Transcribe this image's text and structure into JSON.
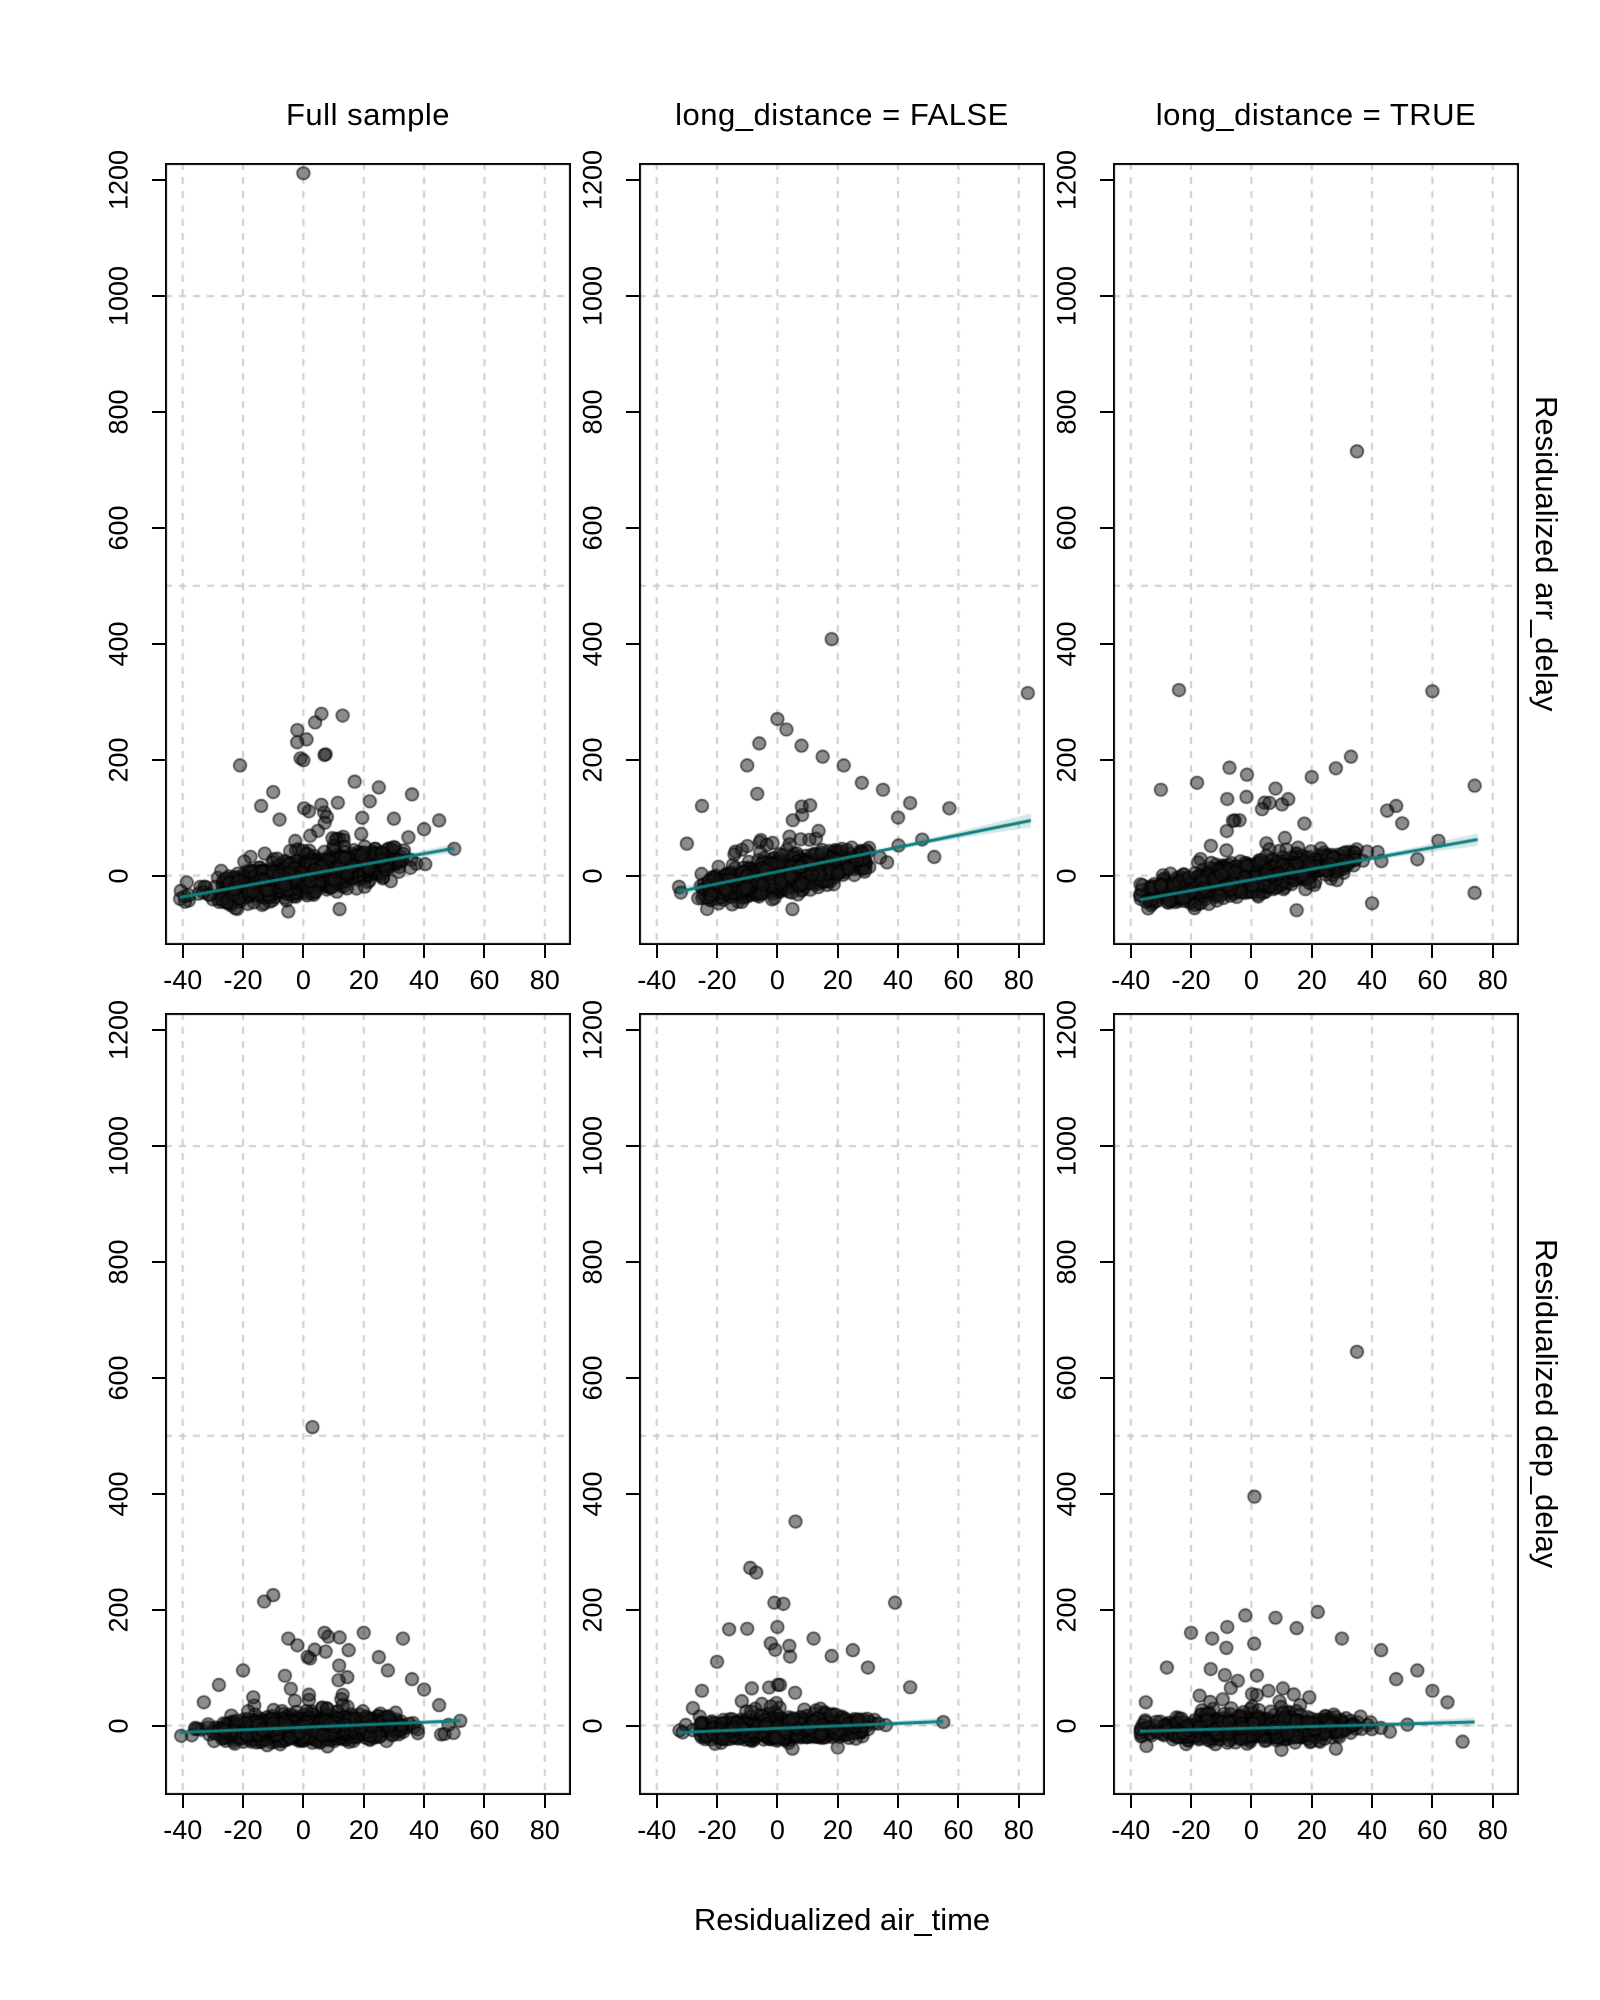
{
  "figure": {
    "background": "#ffffff",
    "description": "2x3 grid of residualized scatter plots with linear fits"
  },
  "chart_data": {
    "type": "scatter",
    "grid": {
      "rows": 2,
      "cols": 3
    },
    "col_titles": [
      "Full sample",
      "long_distance = FALSE",
      "long_distance = TRUE"
    ],
    "row_labels": [
      "Residualized arr_delay",
      "Residualized dep_delay"
    ],
    "xlabel": "Residualized air_time",
    "x_ticks": [
      -40,
      -20,
      0,
      20,
      40,
      60,
      80
    ],
    "y_ticks": [
      0,
      200,
      400,
      600,
      800,
      1000,
      1200
    ],
    "v_gridlines": [
      -40,
      -20,
      0,
      20,
      40,
      60,
      80
    ],
    "h_gridlines": [
      0,
      500,
      1000
    ],
    "xlim": [
      -45.7,
      88.6
    ],
    "ylim": [
      -120,
      1230
    ],
    "legend": "none",
    "style": {
      "line_color": "#0f7e7e",
      "ribbon_color": "rgba(15,126,126,0.18)",
      "point_fill": "rgba(25,25,25,0.5)",
      "point_stroke": "rgba(0,0,0,0.65)",
      "point_radius": 6.3,
      "grid_color": "#cccccc",
      "border_color": "#000000",
      "text_color": "#000000"
    },
    "panels": [
      {
        "id": "full-sample-arr-delay",
        "row": 0,
        "col": 0,
        "title": "Full sample",
        "yvar": "Residualized arr_delay",
        "fit_line": {
          "x": [
            -41,
            50
          ],
          "y": [
            -38,
            47
          ]
        },
        "ribbon": {
          "start": 5,
          "mid": 2.5,
          "end": 8
        },
        "seed": 101,
        "cluster": {
          "n": 1500,
          "x_mu": 2,
          "x_sd": 13,
          "x_range": [
            -41,
            50
          ],
          "slope": 0.9,
          "intercept": -2,
          "sigma": 13,
          "p_tail": 0.055,
          "tail_scale": 65,
          "fan_mu": 5,
          "fan_sd": 16,
          "y_cap": 280,
          "y_floor": -68
        },
        "outliers": [
          [
            0,
            1212
          ],
          [
            6,
            279
          ],
          [
            13,
            276
          ],
          [
            -2,
            251
          ],
          [
            -21,
            190
          ],
          [
            7,
            208
          ],
          [
            0,
            199
          ],
          [
            17,
            162
          ],
          [
            25,
            152
          ],
          [
            36,
            140
          ],
          [
            -10,
            144
          ],
          [
            -14,
            120
          ],
          [
            45,
            95
          ],
          [
            50,
            46
          ],
          [
            -38,
            -34
          ],
          [
            -5,
            -62
          ],
          [
            12,
            -58
          ],
          [
            30,
            98
          ],
          [
            40,
            80
          ],
          [
            22,
            128
          ]
        ]
      },
      {
        "id": "long-distance-false-arr-delay",
        "row": 0,
        "col": 1,
        "title": "long_distance = FALSE",
        "yvar": "Residualized arr_delay",
        "fit_line": {
          "x": [
            -33,
            84
          ],
          "y": [
            -28,
            95
          ]
        },
        "ribbon": {
          "start": 8,
          "mid": 3,
          "end": 12
        },
        "seed": 102,
        "cluster": {
          "n": 850,
          "x_mu": 2,
          "x_sd": 12,
          "x_range": [
            -33,
            45
          ],
          "slope": 1.0,
          "intercept": -3,
          "sigma": 13,
          "p_tail": 0.07,
          "tail_scale": 60,
          "fan_mu": 2,
          "fan_sd": 14,
          "y_cap": 265,
          "y_floor": -60
        },
        "outliers": [
          [
            18,
            408
          ],
          [
            83,
            315
          ],
          [
            0,
            270
          ],
          [
            3,
            252
          ],
          [
            -6,
            228
          ],
          [
            8,
            224
          ],
          [
            57,
            116
          ],
          [
            44,
            125
          ],
          [
            -25,
            120
          ],
          [
            35,
            148
          ],
          [
            28,
            160
          ],
          [
            48,
            62
          ],
          [
            52,
            32
          ],
          [
            -30,
            55
          ],
          [
            5,
            -58
          ],
          [
            -15,
            -50
          ],
          [
            40,
            100
          ],
          [
            22,
            190
          ],
          [
            15,
            205
          ],
          [
            -10,
            190
          ]
        ]
      },
      {
        "id": "long-distance-true-arr-delay",
        "row": 0,
        "col": 2,
        "title": "long_distance = TRUE",
        "yvar": "Residualized arr_delay",
        "fit_line": {
          "x": [
            -37,
            75
          ],
          "y": [
            -42,
            62
          ]
        },
        "ribbon": {
          "start": 7,
          "mid": 3,
          "end": 11
        },
        "seed": 103,
        "cluster": {
          "n": 900,
          "x_mu": 0,
          "x_sd": 15,
          "x_range": [
            -37,
            62
          ],
          "slope": 0.85,
          "intercept": -4,
          "sigma": 13,
          "p_tail": 0.06,
          "tail_scale": 55,
          "fan_mu": 0,
          "fan_sd": 20,
          "y_cap": 205,
          "y_floor": -62
        },
        "outliers": [
          [
            35,
            732
          ],
          [
            -24,
            320
          ],
          [
            60,
            318
          ],
          [
            33,
            205
          ],
          [
            74,
            155
          ],
          [
            48,
            120
          ],
          [
            -30,
            148
          ],
          [
            -18,
            160
          ],
          [
            20,
            170
          ],
          [
            28,
            185
          ],
          [
            8,
            150
          ],
          [
            -8,
            132
          ],
          [
            50,
            90
          ],
          [
            62,
            60
          ],
          [
            74,
            -30
          ],
          [
            -35,
            -45
          ],
          [
            15,
            -60
          ],
          [
            40,
            -48
          ],
          [
            55,
            28
          ],
          [
            45,
            112
          ]
        ]
      },
      {
        "id": "full-sample-dep-delay",
        "row": 1,
        "col": 0,
        "title": "Full sample",
        "yvar": "Residualized dep_delay",
        "fit_line": {
          "x": [
            -41,
            52
          ],
          "y": [
            -12,
            8
          ]
        },
        "ribbon": {
          "start": 3,
          "mid": 1.5,
          "end": 5
        },
        "seed": 104,
        "cluster": {
          "n": 1500,
          "x_mu": 2,
          "x_sd": 13,
          "x_range": [
            -41,
            52
          ],
          "slope": 0.16,
          "intercept": -6,
          "sigma": 9,
          "p_tail": 0.055,
          "tail_scale": 48,
          "fan_mu": 3,
          "fan_sd": 15,
          "y_cap": 158,
          "y_floor": -42
        },
        "outliers": [
          [
            3,
            515
          ],
          [
            -10,
            225
          ],
          [
            -13,
            214
          ],
          [
            7,
            160
          ],
          [
            -5,
            150
          ],
          [
            12,
            152
          ],
          [
            20,
            160
          ],
          [
            33,
            150
          ],
          [
            25,
            118
          ],
          [
            -20,
            95
          ],
          [
            40,
            62
          ],
          [
            52,
            8
          ],
          [
            -28,
            70
          ],
          [
            15,
            130
          ],
          [
            28,
            95
          ],
          [
            -33,
            40
          ],
          [
            8,
            -36
          ],
          [
            -12,
            -34
          ],
          [
            45,
            35
          ],
          [
            36,
            80
          ]
        ]
      },
      {
        "id": "long-distance-false-dep-delay",
        "row": 1,
        "col": 1,
        "title": "long_distance = FALSE",
        "yvar": "Residualized dep_delay",
        "fit_line": {
          "x": [
            -33,
            55
          ],
          "y": [
            -12,
            7
          ]
        },
        "ribbon": {
          "start": 4,
          "mid": 2,
          "end": 7
        },
        "seed": 105,
        "cluster": {
          "n": 850,
          "x_mu": 2,
          "x_sd": 12,
          "x_range": [
            -33,
            55
          ],
          "slope": 0.14,
          "intercept": -6,
          "sigma": 9,
          "p_tail": 0.07,
          "tail_scale": 48,
          "fan_mu": 2,
          "fan_sd": 13,
          "y_cap": 150,
          "y_floor": -40
        },
        "outliers": [
          [
            6,
            352
          ],
          [
            -9,
            272
          ],
          [
            -7,
            264
          ],
          [
            -1,
            212
          ],
          [
            2,
            210
          ],
          [
            39,
            212
          ],
          [
            -16,
            166
          ],
          [
            -10,
            167
          ],
          [
            0,
            170
          ],
          [
            12,
            150
          ],
          [
            25,
            130
          ],
          [
            44,
            66
          ],
          [
            55,
            6
          ],
          [
            -25,
            60
          ],
          [
            18,
            120
          ],
          [
            30,
            100
          ],
          [
            -20,
            110
          ],
          [
            5,
            -40
          ],
          [
            20,
            -38
          ],
          [
            -28,
            30
          ]
        ]
      },
      {
        "id": "long-distance-true-dep-delay",
        "row": 1,
        "col": 2,
        "title": "long_distance = TRUE",
        "yvar": "Residualized dep_delay",
        "fit_line": {
          "x": [
            -37,
            74
          ],
          "y": [
            -10,
            6
          ]
        },
        "ribbon": {
          "start": 5,
          "mid": 2,
          "end": 8
        },
        "seed": 106,
        "cluster": {
          "n": 900,
          "x_mu": 0,
          "x_sd": 15,
          "x_range": [
            -37,
            60
          ],
          "slope": 0.12,
          "intercept": -6,
          "sigma": 9,
          "p_tail": 0.06,
          "tail_scale": 45,
          "fan_mu": 0,
          "fan_sd": 18,
          "y_cap": 150,
          "y_floor": -45
        },
        "outliers": [
          [
            35,
            645
          ],
          [
            1,
            395
          ],
          [
            -2,
            190
          ],
          [
            8,
            186
          ],
          [
            22,
            196
          ],
          [
            -20,
            160
          ],
          [
            -13,
            150
          ],
          [
            30,
            150
          ],
          [
            43,
            130
          ],
          [
            55,
            95
          ],
          [
            -28,
            100
          ],
          [
            70,
            -28
          ],
          [
            60,
            60
          ],
          [
            48,
            80
          ],
          [
            -35,
            40
          ],
          [
            10,
            -42
          ],
          [
            28,
            -40
          ],
          [
            65,
            40
          ],
          [
            15,
            168
          ],
          [
            -8,
            170
          ]
        ]
      }
    ]
  }
}
